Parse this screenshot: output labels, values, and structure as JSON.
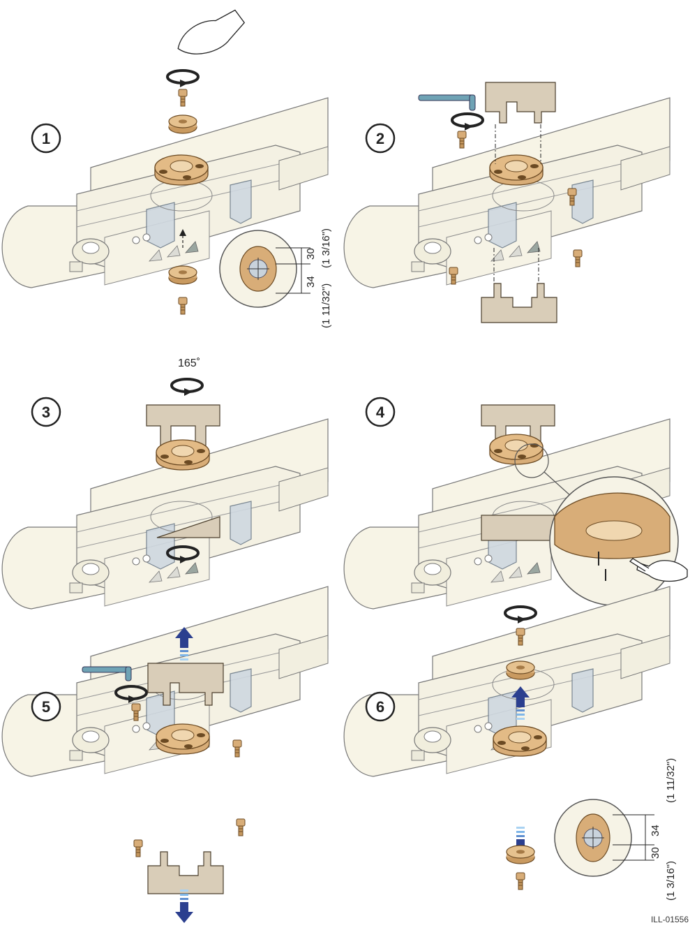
{
  "steps": [
    {
      "number": "1",
      "caption_dims": {
        "upper": "30",
        "upper_in": "(1 3/16\")",
        "lower": "34",
        "lower_in": "(1 11/32\")"
      }
    },
    {
      "number": "2"
    },
    {
      "number": "3",
      "rotation_label": "165˚"
    },
    {
      "number": "4",
      "warning": "!"
    },
    {
      "number": "5"
    },
    {
      "number": "6",
      "caption_dims": {
        "upper": "34",
        "upper_in": "(1 11/32\")",
        "lower": "30",
        "lower_in": "(1 3/16\")"
      }
    }
  ],
  "illustration_code": "ILL-01556",
  "colors": {
    "tube": "#f7f4e6",
    "tube_stroke": "#777777",
    "bronze": "#d8ad78",
    "bronze_dark": "#a57a46",
    "template": "#d9cdb8",
    "clamp": "#cfd8e0",
    "wrench": "#6fa3b5",
    "arrow_blue": "#2b3f8f",
    "arrow_light": "#7fb6e8"
  }
}
